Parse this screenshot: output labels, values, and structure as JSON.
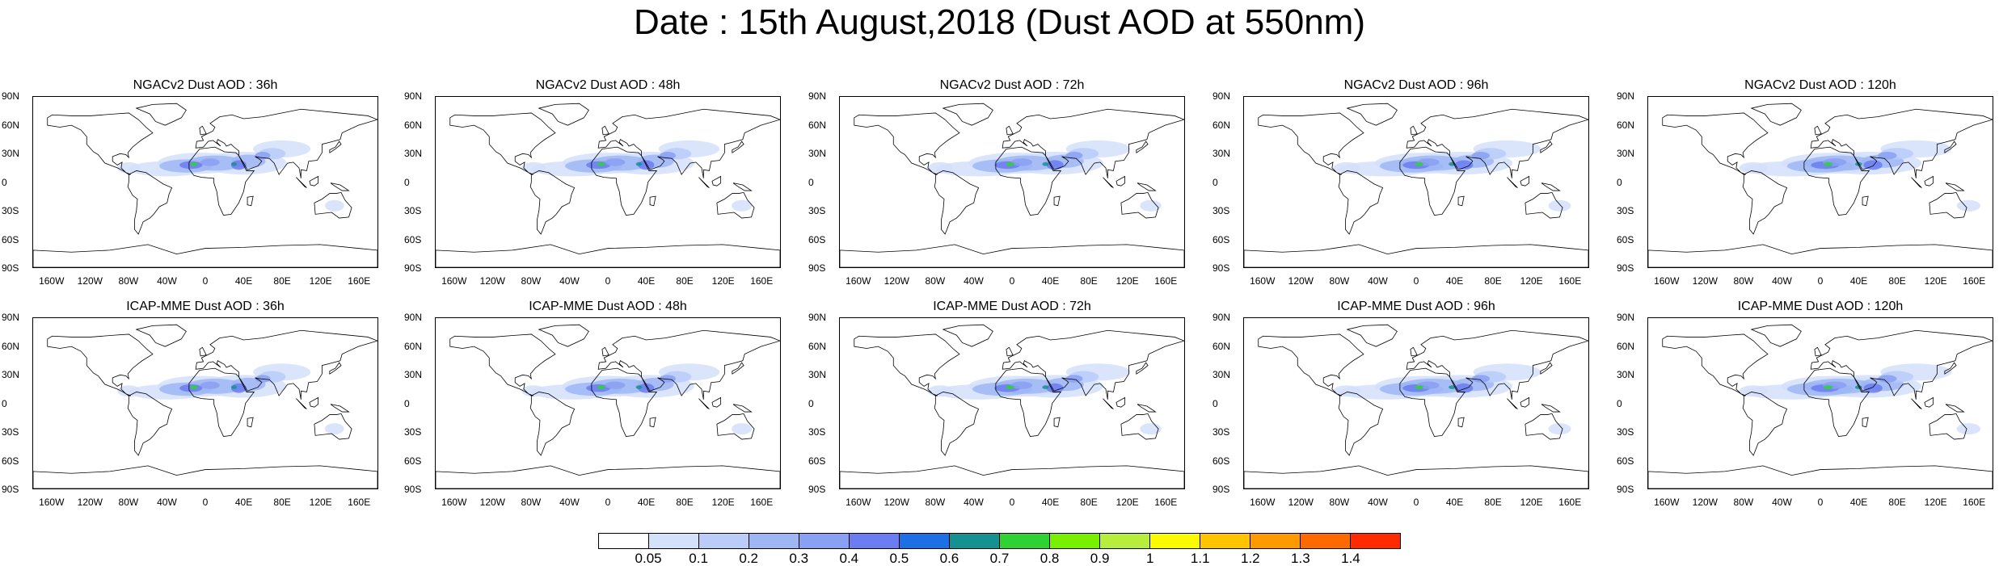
{
  "title": "Date : 15th August,2018 (Dust AOD at 550nm)",
  "lat_labels": [
    "90N",
    "60N",
    "30N",
    "0",
    "30S",
    "60S",
    "90S"
  ],
  "lon_labels": [
    "160W",
    "120W",
    "80W",
    "40W",
    "0",
    "40E",
    "80E",
    "120E",
    "160E"
  ],
  "panels": [
    {
      "title": "NGACv2 Dust AOD : 36h",
      "row": 0,
      "col": 0
    },
    {
      "title": "NGACv2 Dust AOD : 48h",
      "row": 0,
      "col": 1
    },
    {
      "title": "NGACv2 Dust AOD : 72h",
      "row": 0,
      "col": 2
    },
    {
      "title": "NGACv2 Dust AOD : 96h",
      "row": 0,
      "col": 3
    },
    {
      "title": "NGACv2 Dust AOD : 120h",
      "row": 0,
      "col": 4
    },
    {
      "title": "ICAP-MME Dust AOD : 36h",
      "row": 1,
      "col": 0
    },
    {
      "title": "ICAP-MME Dust AOD : 48h",
      "row": 1,
      "col": 1
    },
    {
      "title": "ICAP-MME Dust AOD : 72h",
      "row": 1,
      "col": 2
    },
    {
      "title": "ICAP-MME Dust AOD : 96h",
      "row": 1,
      "col": 3
    },
    {
      "title": "ICAP-MME Dust AOD : 120h",
      "row": 1,
      "col": 4
    }
  ],
  "colorbar": {
    "labels": [
      "0.05",
      "0.1",
      "0.2",
      "0.3",
      "0.4",
      "0.5",
      "0.6",
      "0.7",
      "0.8",
      "0.9",
      "1",
      "1.1",
      "1.2",
      "1.3",
      "1.4"
    ],
    "colors": [
      "#ffffff",
      "#d4e1fb",
      "#b9cdf8",
      "#9fb6f5",
      "#8aa0f2",
      "#6b7df0",
      "#1d6fe6",
      "#169191",
      "#2fd135",
      "#78f000",
      "#b7ee3d",
      "#fafa00",
      "#ffc400",
      "#ff9900",
      "#ff6a00",
      "#ff2a00"
    ]
  }
}
